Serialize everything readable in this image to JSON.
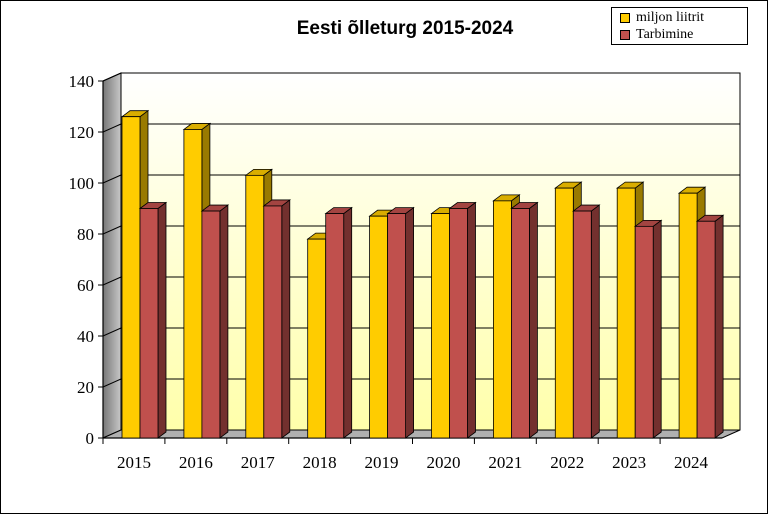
{
  "chart_data": {
    "type": "bar",
    "title": "Eesti õlleturg 2015-2024",
    "categories": [
      "2015",
      "2016",
      "2017",
      "2018",
      "2019",
      "2020",
      "2021",
      "2022",
      "2023",
      "2024"
    ],
    "series": [
      {
        "name": "miljon liitrit",
        "color": "#ffcc00",
        "values": [
          126,
          121,
          103,
          78,
          87,
          88,
          93,
          98,
          98,
          96
        ]
      },
      {
        "name": "Tarbimine",
        "color": "#c0504d",
        "values": [
          90,
          89,
          91,
          88,
          88,
          90,
          90,
          89,
          83,
          85
        ]
      }
    ],
    "y_ticks": [
      "0",
      "20",
      "40",
      "60",
      "80",
      "100",
      "120",
      "140"
    ],
    "ylim": [
      0,
      140
    ],
    "xlabel": "",
    "ylabel": "",
    "grid": true,
    "legend_position": "top-right"
  }
}
